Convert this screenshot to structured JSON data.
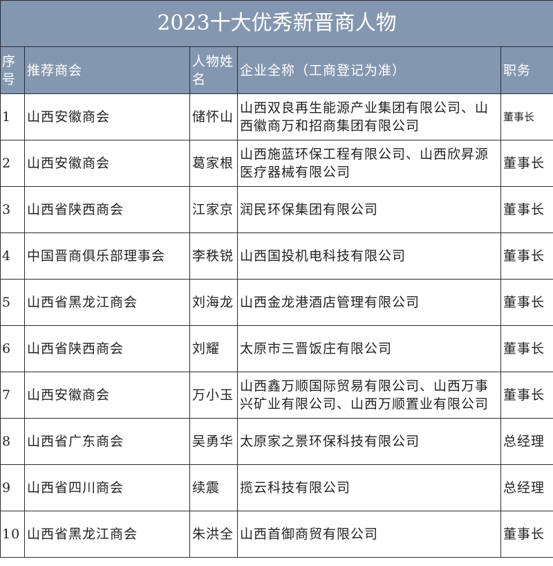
{
  "title": "2023十大优秀新晋商人物",
  "colors": {
    "header_bg": "#8497b0",
    "header_text": "#ffffff",
    "border": "#2a2a2a"
  },
  "columns": [
    "序号",
    "推荐商会",
    "人物姓名",
    "企业全称（工商登记为准）",
    "职务"
  ],
  "rows": [
    {
      "no": "1",
      "chamber": "山西安徽商会",
      "name": "储怀山",
      "company": "山西双良再生能源产业集团有限公司、山西徽商万和招商集团有限公司",
      "position": "董事长"
    },
    {
      "no": "2",
      "chamber": "山西安徽商会",
      "name": "葛家根",
      "company": "山西施蓝环保工程有限公司、山西欣昇源医疗器械有限公司",
      "position": "董事长"
    },
    {
      "no": "3",
      "chamber": "山西省陕西商会",
      "name": "江家京",
      "company": "润民环保集团有限公司",
      "position": "董事长"
    },
    {
      "no": "4",
      "chamber": "中国晋商俱乐部理事会",
      "name": "李秩锐",
      "company": "山西国投机电科技有限公司",
      "position": "董事长"
    },
    {
      "no": "5",
      "chamber": "山西省黑龙江商会",
      "name": "刘海龙",
      "company": "山西金龙港酒店管理有限公司",
      "position": "董事长"
    },
    {
      "no": "6",
      "chamber": "山西省陕西商会",
      "name": "刘耀",
      "company": "太原市三晋饭庄有限公司",
      "position": "董事长"
    },
    {
      "no": "7",
      "chamber": "山西安徽商会",
      "name": "万小玉",
      "company": "山西鑫万顺国际贸易有限公司、山西万事兴矿业有限公司、山西万顺置业有限公司",
      "position": "董事长"
    },
    {
      "no": "8",
      "chamber": "山西省广东商会",
      "name": "吴勇华",
      "company": "太原家之景环保科技有限公司",
      "position": "总经理"
    },
    {
      "no": "9",
      "chamber": "山西省四川商会",
      "name": "续震",
      "company": "揽云科技有限公司",
      "position": "总经理"
    },
    {
      "no": "10",
      "chamber": "山西省黑龙江商会",
      "name": "朱洪全",
      "company": "山西首御商贸有限公司",
      "position": "董事长"
    }
  ]
}
